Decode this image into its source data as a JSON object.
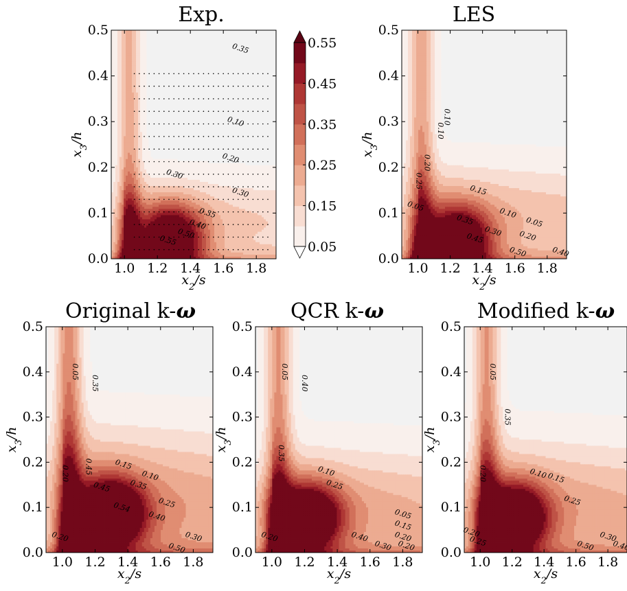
{
  "colors": {
    "background_fill": "#f2f2f2",
    "levels": [
      "#f9f0ec",
      "#f8ddd2",
      "#f4c3ae",
      "#ecab91",
      "#e08d72",
      "#d1705a",
      "#bf5346",
      "#ae3734",
      "#951a26",
      "#72081a"
    ],
    "contour_line": "#000000"
  },
  "chart_data": [
    {
      "type": "heatmap",
      "title": "Exp.",
      "xlabel": "x2/s",
      "ylabel": "x3/h",
      "xlim": [
        0.92,
        1.92
      ],
      "ylim": [
        0.0,
        0.5
      ],
      "xticks": [
        "1.0",
        "1.2",
        "1.4",
        "1.6",
        "1.8"
      ],
      "yticks": [
        "0.0",
        "0.1",
        "0.2",
        "0.3",
        "0.4",
        "0.5"
      ],
      "contour_labels": [
        "0.35",
        "0.30",
        "0.20",
        "0.10",
        "0.30",
        "0.35",
        "0.40",
        "0.50",
        "0.55"
      ],
      "peak": {
        "x": 1.28,
        "y": 0.04,
        "value": 0.57
      },
      "wall_band": {
        "x": 1.03,
        "width": 0.06,
        "value": 0.38
      },
      "vertical_band": {
        "x": 1.03,
        "width": 0.07,
        "value": 0.18
      },
      "shear_layer": {
        "height": 0.085,
        "thickness": 0.09,
        "value": 0.16
      },
      "measurement_points": true
    },
    {
      "type": "heatmap",
      "title": "LES",
      "xlabel": "x2/s",
      "ylabel": "x3/h",
      "xlim": [
        0.9,
        1.92
      ],
      "ylim": [
        0.0,
        0.5
      ],
      "xticks": [
        "1.0",
        "1.2",
        "1.4",
        "1.6",
        "1.8"
      ],
      "yticks": [
        "0.0",
        "0.1",
        "0.2",
        "0.3",
        "0.4",
        "0.5"
      ],
      "contour_labels": [
        "0.05",
        "0.20",
        "0.10",
        "0.10",
        "0.25",
        "0.15",
        "0.10",
        "0.05",
        "0.35",
        "0.30",
        "0.20",
        "0.45",
        "0.50",
        "0.40"
      ],
      "peak": {
        "x": 1.25,
        "y": 0.035,
        "value": 0.58
      },
      "wall_band": {
        "x": 1.02,
        "width": 0.06,
        "value": 0.32
      },
      "vertical_band": {
        "x": 1.02,
        "width": 0.08,
        "value": 0.2
      },
      "shear_layer": {
        "height": 0.09,
        "thickness": 0.11,
        "value": 0.2
      }
    },
    {
      "type": "heatmap",
      "title": "Original k-ω",
      "xlabel": "x2/s",
      "ylabel": "x3/h",
      "xlim": [
        0.9,
        1.92
      ],
      "ylim": [
        0.0,
        0.5
      ],
      "xticks": [
        "1.0",
        "1.2",
        "1.4",
        "1.6",
        "1.8"
      ],
      "yticks": [
        "0.0",
        "0.1",
        "0.2",
        "0.3",
        "0.4",
        "0.5"
      ],
      "contour_labels": [
        "0.05",
        "0.20",
        "0.35",
        "0.45",
        "0.15",
        "0.10",
        "0.35",
        "0.45",
        "0.25",
        "0.54",
        "0.40",
        "0.20",
        "0.30",
        "0.50"
      ],
      "peak": {
        "x": 1.3,
        "y": 0.085,
        "value": 0.62
      },
      "wall_band": {
        "x": 1.04,
        "width": 0.06,
        "value": 0.5
      },
      "vertical_band": {
        "x": 1.04,
        "width": 0.08,
        "value": 0.25
      },
      "shear_layer": {
        "height": 0.1,
        "thickness": 0.16,
        "value": 0.28
      }
    },
    {
      "type": "heatmap",
      "title": "QCR k-ω",
      "xlabel": "x2/s",
      "ylabel": "x3/h",
      "xlim": [
        0.9,
        1.92
      ],
      "ylim": [
        0.0,
        0.5
      ],
      "xticks": [
        "1.0",
        "1.2",
        "1.4",
        "1.6",
        "1.8"
      ],
      "yticks": [
        "0.0",
        "0.1",
        "0.2",
        "0.3",
        "0.4",
        "0.5"
      ],
      "contour_labels": [
        "0.20",
        "0.05",
        "0.40",
        "0.35",
        "0.10",
        "0.25",
        "0.05",
        "0.15",
        "0.20",
        "0.40",
        "0.30",
        "0.20"
      ],
      "peak": {
        "x": 1.22,
        "y": 0.075,
        "value": 0.58
      },
      "wall_band": {
        "x": 1.04,
        "width": 0.06,
        "value": 0.46
      },
      "vertical_band": {
        "x": 1.04,
        "width": 0.08,
        "value": 0.22
      },
      "shear_layer": {
        "height": 0.09,
        "thickness": 0.13,
        "value": 0.24
      }
    },
    {
      "type": "heatmap",
      "title": "Modified k-ω",
      "xlabel": "x2/s",
      "ylabel": "x3/h",
      "xlim": [
        0.9,
        1.92
      ],
      "ylim": [
        0.0,
        0.5
      ],
      "xticks": [
        "1.0",
        "1.2",
        "1.4",
        "1.6",
        "1.8"
      ],
      "yticks": [
        "0.0",
        "0.1",
        "0.2",
        "0.3",
        "0.4",
        "0.5"
      ],
      "contour_labels": [
        "0.05",
        "0.35",
        "0.20",
        "0.10",
        "0.15",
        "0.25",
        "0.20",
        "0.25",
        "0.30",
        "0.50",
        "0.40"
      ],
      "peak": {
        "x": 1.22,
        "y": 0.075,
        "value": 0.58
      },
      "wall_band": {
        "x": 1.04,
        "width": 0.06,
        "value": 0.45
      },
      "vertical_band": {
        "x": 1.04,
        "width": 0.08,
        "value": 0.22
      },
      "shear_layer": {
        "height": 0.095,
        "thickness": 0.14,
        "value": 0.25
      }
    }
  ],
  "colorbar": {
    "levels": [
      0.05,
      0.1,
      0.15,
      0.2,
      0.25,
      0.3,
      0.35,
      0.4,
      0.45,
      0.5,
      0.55
    ],
    "tick_labels": [
      "0.05",
      "0.15",
      "0.25",
      "0.35",
      "0.45",
      "0.55"
    ]
  }
}
